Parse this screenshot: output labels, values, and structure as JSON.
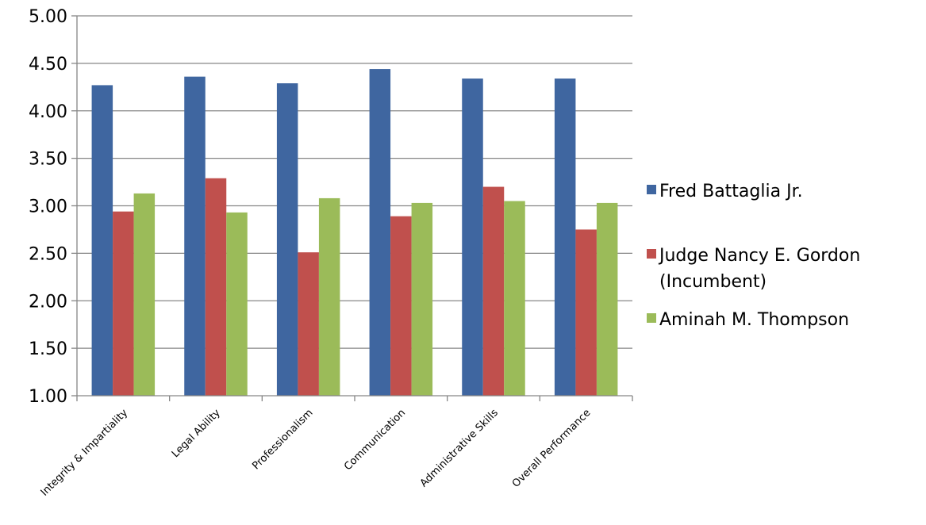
{
  "chart_data": {
    "type": "bar",
    "title": "",
    "xlabel": "",
    "ylabel": "",
    "ylim": [
      1.0,
      5.0
    ],
    "ytick_step": 0.5,
    "y_tick_labels": [
      "1.00",
      "1.50",
      "2.00",
      "2.50",
      "3.00",
      "3.50",
      "4.00",
      "4.50",
      "5.00"
    ],
    "grid": true,
    "legend_position": "right",
    "categories": [
      "Integrity & Impartiality",
      "Legal Ability",
      "Professionalism",
      "Communication",
      "Administrative Skills",
      "Overall Performance"
    ],
    "series": [
      {
        "name": "Fred Battaglia Jr.",
        "color": "#3F66A0",
        "values": [
          4.27,
          4.36,
          4.29,
          4.44,
          4.34,
          4.34
        ]
      },
      {
        "name": "Judge Nancy E. Gordon (Incumbent)",
        "name_lines": [
          "Judge Nancy E. Gordon",
          "(Incumbent)"
        ],
        "color": "#C0504D",
        "values": [
          2.94,
          3.29,
          2.51,
          2.89,
          3.2,
          2.75
        ]
      },
      {
        "name": "Aminah M. Thompson",
        "color": "#9BBB59",
        "values": [
          3.13,
          2.93,
          3.08,
          3.03,
          3.05,
          3.03
        ]
      }
    ]
  }
}
